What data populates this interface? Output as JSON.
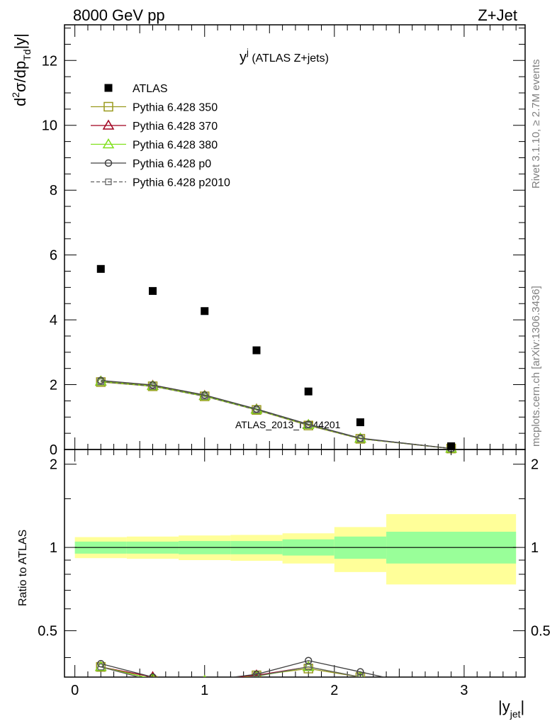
{
  "header": {
    "left": "8000 GeV pp",
    "right": "Z+Jet"
  },
  "plot_title": {
    "main": "y",
    "sup": "j",
    "rest": " (ATLAS Z+jets)"
  },
  "side_text": {
    "rivet": "Rivet 3.1.10, ≥ 2.7M events",
    "mcplots": "mcplots.cern.ch [arXiv:1306.3436]"
  },
  "watermark": "ATLAS_2013_I1744201",
  "axes": {
    "y_main_label": {
      "base": "d",
      "sup": "2",
      "mid": "σ/dp",
      "sub": "Td",
      "end": "|y|"
    },
    "y_ratio_label": "Ratio to ATLAS",
    "x_label": {
      "base": "|y",
      "sub": "jet",
      "end": "|"
    }
  },
  "colors": {
    "atlas": "#000000",
    "p350": "#9a9a1e",
    "p370": "#a0001e",
    "p380": "#7fe01a",
    "p0": "#404040",
    "p2010": "#606060",
    "band_inner": "#99ff99",
    "band_outer": "#ffff99"
  },
  "chart_data": [
    {
      "type": "scatter",
      "panel": "main",
      "xlim": [
        -0.08,
        3.47
      ],
      "ylim": [
        0,
        13.1
      ],
      "xticks": [
        0,
        1,
        2,
        3
      ],
      "yticks": [
        0,
        2,
        4,
        6,
        8,
        10,
        12
      ],
      "ytick_labels": [
        "0",
        "2",
        "4",
        "6",
        "8",
        "10",
        "12"
      ],
      "legend_position": "top-left",
      "series": [
        {
          "name": "ATLAS",
          "marker": "filled-square",
          "color": "#000000",
          "x": [
            0.2,
            0.6,
            1.0,
            1.4,
            1.8,
            2.2,
            2.9
          ],
          "y": [
            5.57,
            4.89,
            4.27,
            3.06,
            1.79,
            0.84,
            0.1
          ]
        },
        {
          "name": "Pythia 6.428 350",
          "marker": "open-square",
          "line": "solid",
          "color": "#9a9a1e",
          "x": [
            0.2,
            0.6,
            1.0,
            1.4,
            1.8,
            2.2,
            2.9
          ],
          "y": [
            2.08,
            1.95,
            1.64,
            1.22,
            0.74,
            0.33,
            0.03
          ]
        },
        {
          "name": "Pythia 6.428 370",
          "marker": "open-triangle",
          "line": "solid",
          "color": "#a0001e",
          "x": [
            0.2,
            0.6,
            1.0,
            1.4,
            1.8,
            2.2,
            2.9
          ],
          "y": [
            2.1,
            1.97,
            1.66,
            1.24,
            0.76,
            0.34,
            0.03
          ]
        },
        {
          "name": "Pythia 6.428 380",
          "marker": "open-triangle",
          "line": "solid",
          "color": "#7fe01a",
          "x": [
            0.2,
            0.6,
            1.0,
            1.4,
            1.8,
            2.2,
            2.9
          ],
          "y": [
            2.1,
            1.96,
            1.65,
            1.23,
            0.76,
            0.34,
            0.03
          ]
        },
        {
          "name": "Pythia 6.428 p0",
          "marker": "open-circle",
          "line": "solid",
          "color": "#404040",
          "x": [
            0.2,
            0.6,
            1.0,
            1.4,
            1.8,
            2.2,
            2.9
          ],
          "y": [
            2.13,
            1.99,
            1.68,
            1.25,
            0.78,
            0.35,
            0.03
          ]
        },
        {
          "name": "Pythia 6.428 p2010",
          "marker": "open-square-small",
          "line": "dashed",
          "color": "#606060",
          "x": [
            0.2,
            0.6,
            1.0,
            1.4,
            1.8,
            2.2,
            2.9
          ],
          "y": [
            2.09,
            1.95,
            1.64,
            1.22,
            0.75,
            0.33,
            0.03
          ]
        }
      ]
    },
    {
      "type": "line",
      "panel": "ratio",
      "xlim": [
        -0.08,
        3.47
      ],
      "ylim": [
        0.34,
        2.26
      ],
      "yscale": "log",
      "xticks": [
        0,
        1,
        2,
        3
      ],
      "xtick_labels": [
        "0",
        "1",
        "2",
        "3"
      ],
      "yticks": [
        0.5,
        1,
        2
      ],
      "ytick_labels": [
        "0.5",
        "1",
        "2"
      ],
      "bands": {
        "edges": [
          0.0,
          0.4,
          0.8,
          1.2,
          1.6,
          2.0,
          2.4,
          3.4
        ],
        "inner_low": [
          0.95,
          0.95,
          0.945,
          0.945,
          0.935,
          0.91,
          0.875
        ],
        "inner_high": [
          1.05,
          1.05,
          1.055,
          1.055,
          1.07,
          1.095,
          1.14
        ],
        "outer_low": [
          0.915,
          0.91,
          0.9,
          0.895,
          0.875,
          0.815,
          0.735
        ],
        "outer_high": [
          1.09,
          1.095,
          1.105,
          1.11,
          1.125,
          1.185,
          1.32
        ]
      },
      "series": [
        {
          "name": "Pythia 6.428 350",
          "marker": "open-square",
          "color": "#9a9a1e",
          "x": [
            0.2,
            0.6,
            1.0,
            1.4,
            1.8,
            2.2,
            2.9
          ],
          "y": [
            0.37,
            0.33,
            0.32,
            0.345,
            0.365,
            0.34,
            0.3
          ]
        },
        {
          "name": "Pythia 6.428 370",
          "marker": "open-triangle",
          "color": "#a0001e",
          "x": [
            0.2,
            0.6,
            1.0,
            1.4,
            1.8,
            2.2,
            2.9
          ],
          "y": [
            0.37,
            0.34,
            0.33,
            0.345,
            0.37,
            0.34,
            0.3
          ]
        },
        {
          "name": "Pythia 6.428 380",
          "marker": "open-triangle",
          "color": "#7fe01a",
          "x": [
            0.2,
            0.6,
            1.0,
            1.4,
            1.8,
            2.2,
            2.9
          ],
          "y": [
            0.37,
            0.335,
            0.33,
            0.342,
            0.37,
            0.34,
            0.3
          ]
        },
        {
          "name": "Pythia 6.428 p0",
          "marker": "open-circle",
          "color": "#404040",
          "x": [
            0.2,
            0.6,
            1.0,
            1.4,
            1.8,
            2.2,
            2.9
          ],
          "y": [
            0.38,
            0.34,
            0.33,
            0.348,
            0.39,
            0.355,
            0.3
          ]
        },
        {
          "name": "Pythia 6.428 p2010",
          "marker": "open-square-small",
          "color": "#606060",
          "x": [
            0.2,
            0.6,
            1.0,
            1.4,
            1.8,
            2.2,
            2.9
          ],
          "y": [
            0.37,
            0.33,
            0.32,
            0.343,
            0.37,
            0.34,
            0.3
          ]
        }
      ]
    }
  ]
}
